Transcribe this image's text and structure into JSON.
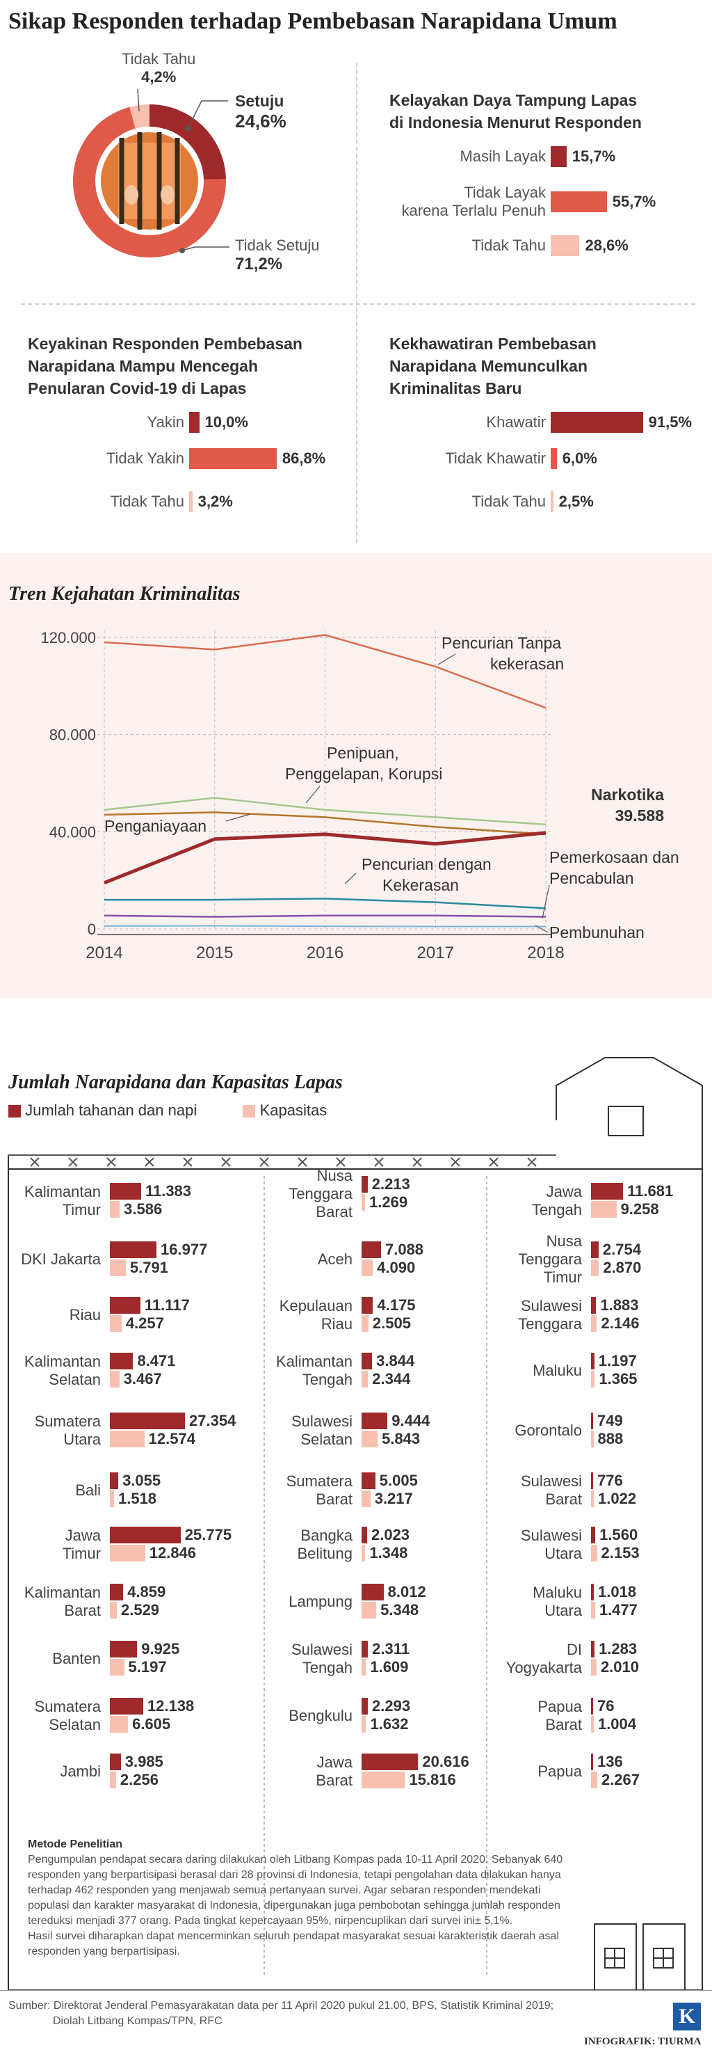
{
  "title": "Sikap Responden terhadap Pembebasan Narapidana Umum",
  "colors": {
    "dark": "#9e2a2b",
    "mid": "#e05a4a",
    "light": "#f8c0b0",
    "orange": "#e07b39"
  },
  "donut": {
    "slices": [
      {
        "label": "Setuju",
        "value": "24,6%",
        "pct": 24.6,
        "color": "#9e2a2b"
      },
      {
        "label": "Tidak Setuju",
        "value": "71,2%",
        "pct": 71.2,
        "color": "#e05a4a"
      },
      {
        "label": "Tidak Tahu",
        "value": "4,2%",
        "pct": 4.2,
        "color": "#f8c0b0"
      }
    ]
  },
  "panels": [
    {
      "title_lines": [
        "Kelayakan Daya Tampung Lapas",
        "di Indonesia Menurut Responden"
      ],
      "items": [
        {
          "label_lines": [
            "Masih Layak"
          ],
          "value": "15,7%",
          "pct": 15.7,
          "color": "#9e2a2b"
        },
        {
          "label_lines": [
            "Tidak Layak",
            "karena Terlalu Penuh"
          ],
          "value": "55,7%",
          "pct": 55.7,
          "color": "#e05a4a"
        },
        {
          "label_lines": [
            "Tidak Tahu"
          ],
          "value": "28,6%",
          "pct": 28.6,
          "color": "#f8c0b0"
        }
      ]
    },
    {
      "title_lines": [
        "Keyakinan Responden Pembebasan",
        "Narapidana Mampu Mencegah",
        "Penularan Covid-19 di Lapas"
      ],
      "items": [
        {
          "label_lines": [
            "Yakin"
          ],
          "value": "10,0%",
          "pct": 10.0,
          "color": "#9e2a2b"
        },
        {
          "label_lines": [
            "Tidak Yakin"
          ],
          "value": "86,8%",
          "pct": 86.8,
          "color": "#e05a4a"
        },
        {
          "label_lines": [
            "Tidak Tahu"
          ],
          "value": "3,2%",
          "pct": 3.2,
          "color": "#f8c0b0"
        }
      ]
    },
    {
      "title_lines": [
        "Kekhawatiran Pembebasan",
        "Narapidana Memunculkan",
        "Kriminalitas Baru"
      ],
      "items": [
        {
          "label_lines": [
            "Khawatir"
          ],
          "value": "91,5%",
          "pct": 91.5,
          "color": "#9e2a2b"
        },
        {
          "label_lines": [
            "Tidak Khawatir"
          ],
          "value": "6,0%",
          "pct": 6.0,
          "color": "#e05a4a"
        },
        {
          "label_lines": [
            "Tidak Tahu"
          ],
          "value": "2,5%",
          "pct": 2.5,
          "color": "#f8c0b0"
        }
      ]
    }
  ],
  "tren": {
    "title": "Tren Kejahatan Kriminalitas",
    "type": "line",
    "x": [
      "2014",
      "2015",
      "2016",
      "2017",
      "2018"
    ],
    "yticks": [
      "0",
      "40.000",
      "80.000",
      "120.000"
    ],
    "ylim": [
      0,
      120000
    ],
    "series": [
      {
        "name": "Pencurian Tanpa kekerasan",
        "label_lines": [
          "Pencurian Tanpa",
          "kekerasan"
        ],
        "color": "#de6a50",
        "width": 2.5,
        "values": [
          118000,
          115000,
          121000,
          108000,
          91000
        ]
      },
      {
        "name": "Penipuan, Penggelapan, Korupsi",
        "label_lines": [
          "Penipuan,",
          "Penggelapan, Korupsi"
        ],
        "color": "#a3c98a",
        "width": 2.5,
        "values": [
          49000,
          54000,
          49000,
          46000,
          43000
        ]
      },
      {
        "name": "Penganiayaan",
        "label_lines": [
          "Penganiayaan"
        ],
        "color": "#b5762a",
        "width": 2.5,
        "values": [
          47000,
          48000,
          46000,
          42000,
          39000
        ]
      },
      {
        "name": "Narkotika",
        "label_lines": [
          "Narkotika",
          "39.588"
        ],
        "color": "#9e2a2b",
        "width": 5,
        "values": [
          19000,
          37000,
          39000,
          35000,
          39588
        ]
      },
      {
        "name": "Pencurian dengan Kekerasan",
        "label_lines": [
          "Pencurian dengan",
          "Kekerasan"
        ],
        "color": "#2a8a9e",
        "width": 2.5,
        "values": [
          12000,
          12000,
          12500,
          11000,
          8500
        ]
      },
      {
        "name": "Pemerkosaan dan Pencabulan",
        "label_lines": [
          "Pemerkosaan dan",
          "Pencabulan"
        ],
        "color": "#8a4fa8",
        "width": 2.5,
        "values": [
          5500,
          5000,
          5500,
          5500,
          5000
        ]
      },
      {
        "name": "Pembunuhan",
        "label_lines": [
          "Pembunuhan"
        ],
        "color": "#7ab0d8",
        "width": 2,
        "values": [
          1200,
          1300,
          1100,
          1000,
          1000
        ]
      }
    ]
  },
  "jumlah": {
    "title": "Jumlah Narapidana dan Kapasitas Lapas",
    "legend": [
      {
        "label": "Jumlah tahanan dan napi",
        "color": "#9e2a2b"
      },
      {
        "label": "Kapasitas",
        "color": "#f8c0b0"
      }
    ],
    "columns": [
      [
        {
          "lines": [
            "Kalimantan",
            "Timur"
          ],
          "napi": "11.383",
          "kap": "3.586",
          "n": 11383,
          "k": 3586
        },
        {
          "lines": [
            "DKI Jakarta"
          ],
          "napi": "16.977",
          "kap": "5.791",
          "n": 16977,
          "k": 5791
        },
        {
          "lines": [
            "Riau"
          ],
          "napi": "11.117",
          "kap": "4.257",
          "n": 11117,
          "k": 4257
        },
        {
          "lines": [
            "Kalimantan",
            "Selatan"
          ],
          "napi": "8.471",
          "kap": "3.467",
          "n": 8471,
          "k": 3467
        },
        {
          "lines": [
            "Sumatera",
            "Utara"
          ],
          "napi": "27.354",
          "kap": "12.574",
          "n": 27354,
          "k": 12574
        },
        {
          "lines": [
            "Bali"
          ],
          "napi": "3.055",
          "kap": "1.518",
          "n": 3055,
          "k": 1518
        },
        {
          "lines": [
            "Jawa",
            "Timur"
          ],
          "napi": "25.775",
          "kap": "12.846",
          "n": 25775,
          "k": 12846
        },
        {
          "lines": [
            "Kalimantan",
            "Barat"
          ],
          "napi": "4.859",
          "kap": "2.529",
          "n": 4859,
          "k": 2529
        },
        {
          "lines": [
            "Banten"
          ],
          "napi": "9.925",
          "kap": "5.197",
          "n": 9925,
          "k": 5197
        },
        {
          "lines": [
            "Sumatera",
            "Selatan"
          ],
          "napi": "12.138",
          "kap": "6.605",
          "n": 12138,
          "k": 6605
        },
        {
          "lines": [
            "Jambi"
          ],
          "napi": "3.985",
          "kap": "2.256",
          "n": 3985,
          "k": 2256
        }
      ],
      [
        {
          "lines": [
            "Nusa",
            "Tenggara",
            "Barat"
          ],
          "napi": "2.213",
          "kap": "1.269",
          "n": 2213,
          "k": 1269
        },
        {
          "lines": [
            "Aceh"
          ],
          "napi": "7.088",
          "kap": "4.090",
          "n": 7088,
          "k": 4090
        },
        {
          "lines": [
            "Kepulauan",
            "Riau"
          ],
          "napi": "4.175",
          "kap": "2.505",
          "n": 4175,
          "k": 2505
        },
        {
          "lines": [
            "Kalimantan",
            "Tengah"
          ],
          "napi": "3.844",
          "kap": "2.344",
          "n": 3844,
          "k": 2344
        },
        {
          "lines": [
            "Sulawesi",
            "Selatan"
          ],
          "napi": "9.444",
          "kap": "5.843",
          "n": 9444,
          "k": 5843
        },
        {
          "lines": [
            "Sumatera",
            "Barat"
          ],
          "napi": "5.005",
          "kap": "3.217",
          "n": 5005,
          "k": 3217
        },
        {
          "lines": [
            "Bangka",
            "Belitung"
          ],
          "napi": "2.023",
          "kap": "1.348",
          "n": 2023,
          "k": 1348
        },
        {
          "lines": [
            "Lampung"
          ],
          "napi": "8.012",
          "kap": "5.348",
          "n": 8012,
          "k": 5348
        },
        {
          "lines": [
            "Sulawesi",
            "Tengah"
          ],
          "napi": "2.311",
          "kap": "1.609",
          "n": 2311,
          "k": 1609
        },
        {
          "lines": [
            "Bengkulu"
          ],
          "napi": "2.293",
          "kap": "1.632",
          "n": 2293,
          "k": 1632
        },
        {
          "lines": [
            "Jawa",
            "Barat"
          ],
          "napi": "20.616",
          "kap": "15.816",
          "n": 20616,
          "k": 15816
        }
      ],
      [
        {
          "lines": [
            "Jawa",
            "Tengah"
          ],
          "napi": "11.681",
          "kap": "9.258",
          "n": 11681,
          "k": 9258
        },
        {
          "lines": [
            "Nusa",
            "Tenggara",
            "Timur"
          ],
          "napi": "2.754",
          "kap": "2.870",
          "n": 2754,
          "k": 2870
        },
        {
          "lines": [
            "Sulawesi",
            "Tenggara"
          ],
          "napi": "1.883",
          "kap": "2.146",
          "n": 1883,
          "k": 2146
        },
        {
          "lines": [
            "Maluku"
          ],
          "napi": "1.197",
          "kap": "1.365",
          "n": 1197,
          "k": 1365
        },
        {
          "lines": [
            "Gorontalo"
          ],
          "napi": "749",
          "kap": "888",
          "n": 749,
          "k": 888
        },
        {
          "lines": [
            "Sulawesi",
            "Barat"
          ],
          "napi": "776",
          "kap": "1.022",
          "n": 776,
          "k": 1022
        },
        {
          "lines": [
            "Sulawesi",
            "Utara"
          ],
          "napi": "1.560",
          "kap": "2.153",
          "n": 1560,
          "k": 2153
        },
        {
          "lines": [
            "Maluku",
            "Utara"
          ],
          "napi": "1.018",
          "kap": "1.477",
          "n": 1018,
          "k": 1477
        },
        {
          "lines": [
            "DI",
            "Yogyakarta"
          ],
          "napi": "1.283",
          "kap": "2.010",
          "n": 1283,
          "k": 2010
        },
        {
          "lines": [
            "Papua",
            "Barat"
          ],
          "napi": "76",
          "kap": "1.004",
          "n": 76,
          "k": 1004
        },
        {
          "lines": [
            "Papua"
          ],
          "napi": "136",
          "kap": "2.267",
          "n": 136,
          "k": 2267
        }
      ]
    ]
  },
  "metode": {
    "title": "Metode Penelitian",
    "lines": [
      "Pengumpulan pendapat  secara daring dilakukan oleh Litbang Kompas pada 10-11 April 2020. Sebanyak 640",
      "responden yang berpartisipasi berasal dari 28 provinsi di Indonesia, tetapi pengolahan data dilakukan hanya",
      "terhadap 462 responden yang menjawab semua pertanyaan survei. Agar sebaran responden mendekati",
      "populasi dan karakter masyarakat di Indonesia, dipergunakan juga pembobotan sehingga jumlah responden",
      "tereduksi menjadi 377 orang. Pada tingkat kepercayaan 95%, nirpencuplikan dari survei ini± 5,1%.",
      "Hasil survei diharapkan dapat mencerminkan seluruh pendapat masyarakat sesuai karakteristik daerah asal",
      "responden yang berpartisipasi."
    ]
  },
  "sumber": {
    "line1": "Sumber: Direktorat Jenderal Pemasyarakatan data per 11 April 2020 pukul 21.00, BPS, Statistik Kriminal 2019;",
    "line2": "Diolah Litbang Kompas/TPN, RFC"
  },
  "logo": "K",
  "credit": "INFOGRAFIK: TIURMA",
  "chart_data": [
    {
      "type": "pie",
      "title": "Sikap Responden terhadap Pembebasan Narapidana Umum",
      "categories": [
        "Setuju",
        "Tidak Setuju",
        "Tidak Tahu"
      ],
      "values": [
        24.6,
        71.2,
        4.2
      ]
    },
    {
      "type": "bar",
      "title": "Kelayakan Daya Tampung Lapas di Indonesia Menurut Responden",
      "categories": [
        "Masih Layak",
        "Tidak Layak karena Terlalu Penuh",
        "Tidak Tahu"
      ],
      "values": [
        15.7,
        55.7,
        28.6
      ]
    },
    {
      "type": "bar",
      "title": "Keyakinan Responden Pembebasan Narapidana Mampu Mencegah Penularan Covid-19 di Lapas",
      "categories": [
        "Yakin",
        "Tidak Yakin",
        "Tidak Tahu"
      ],
      "values": [
        10.0,
        86.8,
        3.2
      ]
    },
    {
      "type": "bar",
      "title": "Kekhawatiran Pembebasan Narapidana Memunculkan Kriminalitas Baru",
      "categories": [
        "Khawatir",
        "Tidak Khawatir",
        "Tidak Tahu"
      ],
      "values": [
        91.5,
        6.0,
        2.5
      ]
    },
    {
      "type": "line",
      "title": "Tren Kejahatan Kriminalitas",
      "x": [
        2014,
        2015,
        2016,
        2017,
        2018
      ],
      "ylim": [
        0,
        120000
      ],
      "series": [
        {
          "name": "Pencurian Tanpa kekerasan",
          "values": [
            118000,
            115000,
            121000,
            108000,
            91000
          ]
        },
        {
          "name": "Penipuan, Penggelapan, Korupsi",
          "values": [
            49000,
            54000,
            49000,
            46000,
            43000
          ]
        },
        {
          "name": "Penganiayaan",
          "values": [
            47000,
            48000,
            46000,
            42000,
            39000
          ]
        },
        {
          "name": "Narkotika",
          "values": [
            19000,
            37000,
            39000,
            35000,
            39588
          ]
        },
        {
          "name": "Pencurian dengan Kekerasan",
          "values": [
            12000,
            12000,
            12500,
            11000,
            8500
          ]
        },
        {
          "name": "Pemerkosaan dan Pencabulan",
          "values": [
            5500,
            5000,
            5500,
            5500,
            5000
          ]
        },
        {
          "name": "Pembunuhan",
          "values": [
            1200,
            1300,
            1100,
            1000,
            1000
          ]
        }
      ]
    },
    {
      "type": "bar",
      "title": "Jumlah Narapidana dan Kapasitas Lapas",
      "categories": [
        "Kalimantan Timur",
        "DKI Jakarta",
        "Riau",
        "Kalimantan Selatan",
        "Sumatera Utara",
        "Bali",
        "Jawa Timur",
        "Kalimantan Barat",
        "Banten",
        "Sumatera Selatan",
        "Jambi",
        "Nusa Tenggara Barat",
        "Aceh",
        "Kepulauan Riau",
        "Kalimantan Tengah",
        "Sulawesi Selatan",
        "Sumatera Barat",
        "Bangka Belitung",
        "Lampung",
        "Sulawesi Tengah",
        "Bengkulu",
        "Jawa Barat",
        "Jawa Tengah",
        "Nusa Tenggara Timur",
        "Sulawesi Tenggara",
        "Maluku",
        "Gorontalo",
        "Sulawesi Barat",
        "Sulawesi Utara",
        "Maluku Utara",
        "DI Yogyakarta",
        "Papua Barat",
        "Papua"
      ],
      "series": [
        {
          "name": "Jumlah tahanan dan napi",
          "values": [
            11383,
            16977,
            11117,
            8471,
            27354,
            3055,
            25775,
            4859,
            9925,
            12138,
            3985,
            2213,
            7088,
            4175,
            3844,
            9444,
            5005,
            2023,
            8012,
            2311,
            2293,
            20616,
            11681,
            2754,
            1883,
            1197,
            749,
            776,
            1560,
            1018,
            1283,
            76,
            136
          ]
        },
        {
          "name": "Kapasitas",
          "values": [
            3586,
            5791,
            4257,
            3467,
            12574,
            1518,
            12846,
            2529,
            5197,
            6605,
            2256,
            1269,
            4090,
            2505,
            2344,
            5843,
            3217,
            1348,
            5348,
            1609,
            1632,
            15816,
            9258,
            2870,
            2146,
            1365,
            888,
            1022,
            2153,
            1477,
            2010,
            1004,
            2267
          ]
        }
      ]
    }
  ]
}
